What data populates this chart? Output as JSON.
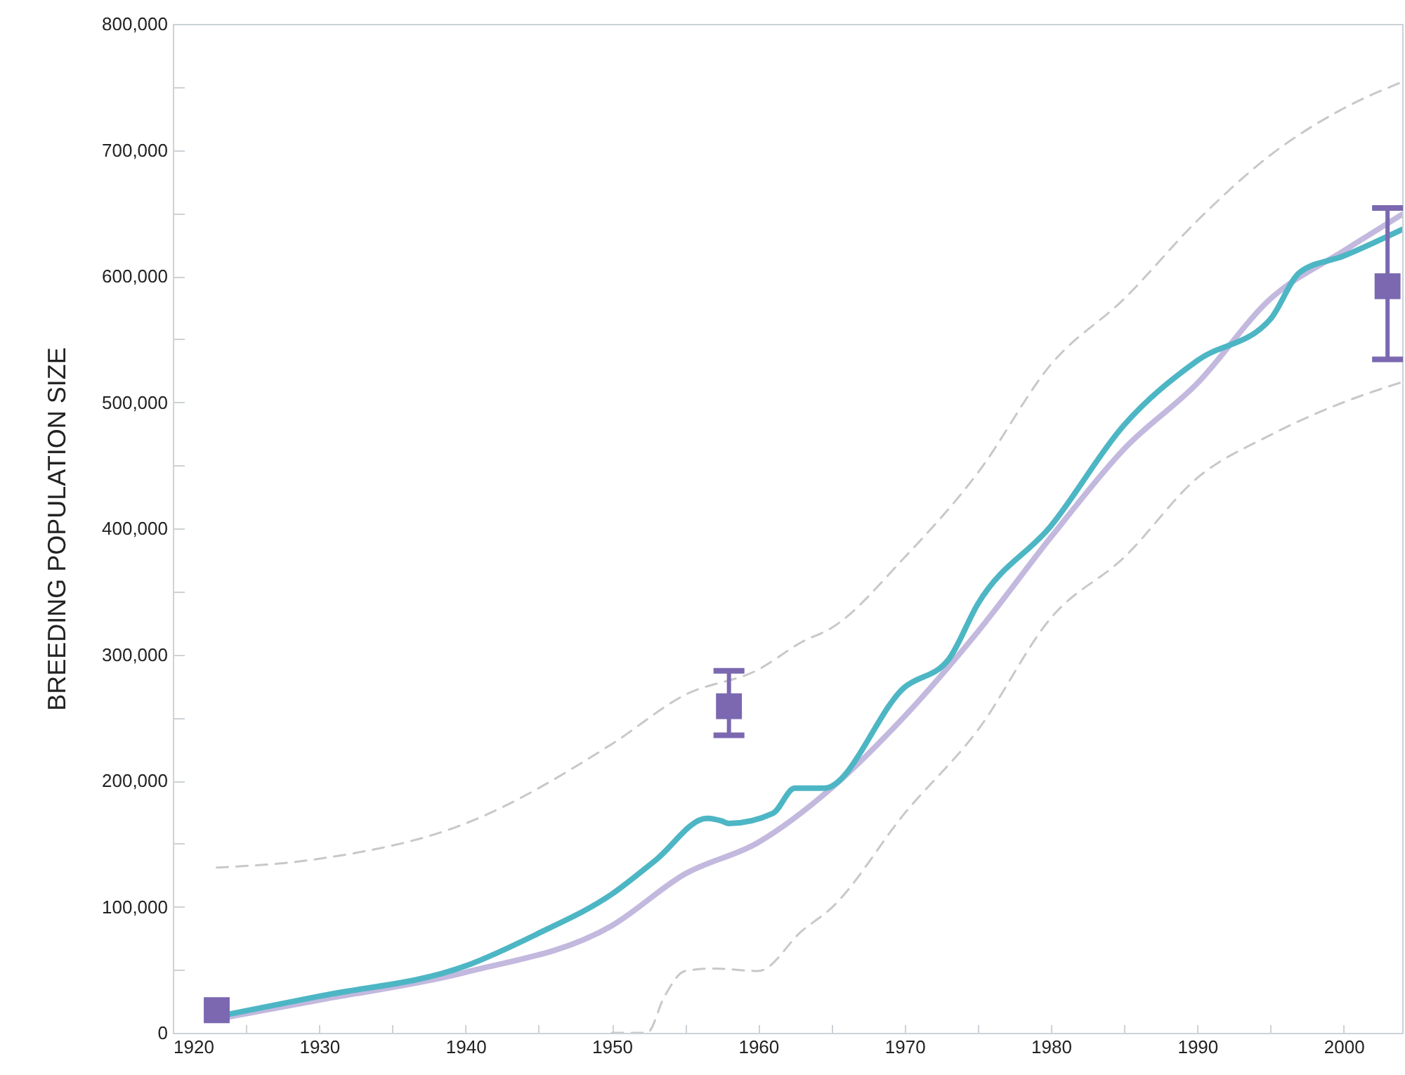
{
  "chart_data": {
    "type": "line",
    "ylabel": "BREEDING POPULATION SIZE",
    "xlim": [
      1920,
      2004
    ],
    "ylim": [
      0,
      800000
    ],
    "xticks": [
      1920,
      {
        "value": 1925,
        "label": null
      },
      1930,
      {
        "value": 1935,
        "label": null
      },
      1940,
      {
        "value": 1945,
        "label": null
      },
      1950,
      {
        "value": 1955,
        "label": null
      },
      1960,
      {
        "value": 1965,
        "label": null
      },
      1970,
      {
        "value": 1975,
        "label": null
      },
      1980,
      {
        "value": 1985,
        "label": null
      },
      1990,
      {
        "value": 1995,
        "label": null
      },
      2000
    ],
    "yticks": [
      0,
      {
        "value": 50000,
        "label": null
      },
      {
        "value": 100000,
        "label": "100,000"
      },
      {
        "value": 150000,
        "label": null
      },
      {
        "value": 200000,
        "label": "200,000"
      },
      {
        "value": 250000,
        "label": null
      },
      {
        "value": 300000,
        "label": "300,000"
      },
      {
        "value": 350000,
        "label": null
      },
      {
        "value": 400000,
        "label": "400,000"
      },
      {
        "value": 450000,
        "label": null
      },
      {
        "value": 500000,
        "label": "500,000"
      },
      {
        "value": 550000,
        "label": null
      },
      {
        "value": 600000,
        "label": "600,000"
      },
      {
        "value": 650000,
        "label": null
      },
      {
        "value": 700000,
        "label": "700,000"
      },
      {
        "value": 750000,
        "label": null
      },
      {
        "value": 800000,
        "label": "800,000"
      }
    ],
    "grid": false,
    "series": [
      {
        "type": "line",
        "line_style": "dashed",
        "color": "#c8c8c8",
        "x": [
          1923,
          1930,
          1940,
          1950,
          1955,
          1960,
          1963,
          1965,
          1970,
          1975,
          1980,
          1985,
          1990,
          1995,
          2000,
          2004
        ],
        "values": [
          131000,
          138000,
          166000,
          229000,
          268000,
          288000,
          310000,
          321000,
          377000,
          444000,
          530000,
          582000,
          644000,
          696000,
          733000,
          754000
        ]
      },
      {
        "type": "line",
        "line_style": "dashed",
        "color": "#c8c8c8",
        "x": [
          1950,
          1952.4,
          1953.6,
          1955,
          1957,
          1960,
          1963,
          1965,
          1970,
          1975,
          1980,
          1985,
          1990,
          1995,
          2000,
          2004
        ],
        "values": [
          0,
          0,
          29000,
          49000,
          51000,
          49000,
          81000,
          99000,
          174000,
          240000,
          329000,
          377000,
          440000,
          474000,
          500000,
          516000
        ]
      },
      {
        "type": "line",
        "line_style": "solid",
        "color": "#c3b8de",
        "x": [
          1923.5,
          1930,
          1940,
          1950,
          1955,
          1960,
          1965,
          1970,
          1975,
          1980,
          1985,
          1990,
          1995,
          2000,
          2004
        ],
        "values": [
          12000,
          26000,
          48000,
          85000,
          126000,
          151000,
          194000,
          251000,
          318000,
          393000,
          463000,
          515000,
          582000,
          620000,
          649000
        ]
      },
      {
        "line_style": "solid",
        "color": "#4db6c4",
        "x": [
          1923.5,
          1930,
          1940,
          1945,
          1950,
          1953,
          1956.5,
          1957.5,
          1958,
          1961,
          1962.5,
          1964.5,
          1970,
          1973,
          1975,
          1980,
          1985,
          1990,
          1995,
          1997,
          2000,
          2004
        ],
        "values": [
          14000,
          29000,
          53000,
          79000,
          110000,
          137000,
          170000,
          168000,
          166000,
          174000,
          194000,
          194000,
          274000,
          296000,
          340000,
          402000,
          482000,
          533000,
          566000,
          603000,
          616000,
          637000
        ]
      },
      {
        "type": "scatter",
        "marker": "square",
        "color": "#7b68b0",
        "x": [
          1923,
          1958,
          2003
        ],
        "values": [
          18000,
          259000,
          592000
        ],
        "errors": [
          null,
          [
            236000,
            287000
          ],
          [
            534000,
            654000
          ]
        ]
      }
    ]
  }
}
